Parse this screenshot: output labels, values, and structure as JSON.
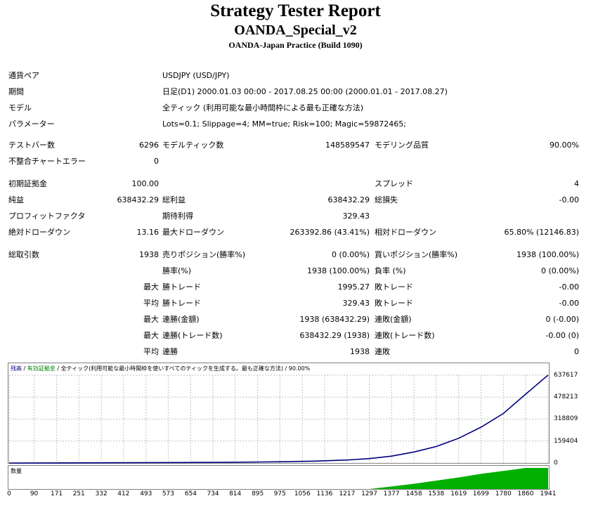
{
  "header": {
    "title": "Strategy Tester Report",
    "subtitle": "OANDA_Special_v2",
    "build": "OANDA-Japan Practice (Build 1090)"
  },
  "settings": {
    "pair_label": "通貨ペア",
    "pair_value": "USDJPY (USD/JPY)",
    "period_label": "期間",
    "period_value": "日足(D1) 2000.01.03 00:00 - 2017.08.25 00:00 (2000.01.01 - 2017.08.27)",
    "model_label": "モデル",
    "model_value": "全ティック (利用可能な最小時間枠による最も正確な方法)",
    "params_label": "パラメーター",
    "params_value": "Lots=0.1; Slippage=4; MM=true; Risk=100; Magic=59872465;"
  },
  "stats": {
    "bars_label": "テストバー数",
    "bars_value": "6296",
    "ticks_label": "モデルティック数",
    "ticks_value": "148589547",
    "quality_label": "モデリング品質",
    "quality_value": "90.00%",
    "mismatch_label": "不整合チャートエラー",
    "mismatch_value": "0",
    "deposit_label": "初期証拠金",
    "deposit_value": "100.00",
    "spread_label": "スプレッド",
    "spread_value": "4",
    "netprofit_label": "純益",
    "netprofit_value": "638432.29",
    "grossprofit_label": "総利益",
    "grossprofit_value": "638432.29",
    "grossloss_label": "総損失",
    "grossloss_value": "-0.00",
    "pf_label": "プロフィットファクタ",
    "expected_label": "期待利得",
    "expected_value": "329.43",
    "absdd_label": "絶対ドローダウン",
    "absdd_value": "13.16",
    "maxdd_label": "最大ドローダウン",
    "maxdd_value": "263392.86 (43.41%)",
    "reldd_label": "相対ドローダウン",
    "reldd_value": "65.80% (12146.83)",
    "total_label": "総取引数",
    "total_value": "1938",
    "short_label": "売りポジション(勝率%)",
    "short_value": "0 (0.00%)",
    "long_label": "買いポジション(勝率%)",
    "long_value": "1938 (100.00%)",
    "winrate_label": "勝率(%)",
    "winrate_value": "1938 (100.00%)",
    "lossrate_label": "負率 (%)",
    "lossrate_value": "0 (0.00%)",
    "max1_label": "最大",
    "maxwin_label": "勝トレード",
    "maxwin_value": "1995.27",
    "maxloss_label": "敗トレード",
    "maxloss_value": "-0.00",
    "avg1_label": "平均",
    "avgwin_label": "勝トレード",
    "avgwin_value": "329.43",
    "avgloss_label": "敗トレード",
    "avgloss_value": "-0.00",
    "max2_label": "最大",
    "conswin_label": "連勝(金額)",
    "conswin_value": "1938 (638432.29)",
    "consloss_label": "連敗(金額)",
    "consloss_value": "0 (-0.00)",
    "max3_label": "最大",
    "consprofit_label": "連勝(トレード数)",
    "consprofit_value": "638432.29 (1938)",
    "consloss2_label": "連敗(トレード数)",
    "consloss2_value": "-0.00 (0)",
    "avg2_label": "平均",
    "avgcons_label": "連勝",
    "avgcons_value": "1938",
    "avgconsloss_label": "連敗",
    "avgconsloss_value": "0"
  },
  "chart_legend": {
    "balance": "残高",
    "sep1": " / ",
    "equity": "有効証拠金",
    "sep2": " / ",
    "rest": "全ティック(利用可能な最小時間枠を使いすべてのティックを生成する。最も正確な方法) / 90.00%",
    "volume": "数量"
  },
  "colors": {
    "balance_line": "#000080",
    "equity_legend": "#008000",
    "volume_fill": "#00b000",
    "grid": "#c0c0c0"
  },
  "chart_data": {
    "type": "line",
    "x_ticks": [
      "0",
      "90",
      "171",
      "251",
      "332",
      "412",
      "493",
      "573",
      "654",
      "734",
      "814",
      "895",
      "975",
      "1056",
      "1136",
      "1217",
      "1297",
      "1377",
      "1458",
      "1538",
      "1619",
      "1699",
      "1780",
      "1860",
      "1941"
    ],
    "y_ticks": [
      "637617",
      "478213",
      "318809",
      "159404",
      "0"
    ],
    "ylim": [
      0,
      637617
    ],
    "xlim": [
      0,
      1941
    ],
    "series": [
      {
        "name": "残高",
        "x": [
          0,
          200,
          400,
          600,
          800,
          975,
          1100,
          1217,
          1297,
          1377,
          1458,
          1538,
          1619,
          1699,
          1780,
          1860,
          1941
        ],
        "y": [
          100,
          800,
          2000,
          3500,
          5500,
          9000,
          14000,
          22000,
          32000,
          50000,
          80000,
          120000,
          180000,
          260000,
          360000,
          500000,
          638432
        ]
      }
    ],
    "volume_series": {
      "name": "数量",
      "x": [
        0,
        1297,
        1377,
        1458,
        1538,
        1619,
        1699,
        1780,
        1860,
        1941
      ],
      "y": [
        0,
        0,
        0.12,
        0.25,
        0.4,
        0.55,
        0.72,
        0.86,
        1.0,
        1.0
      ]
    }
  }
}
